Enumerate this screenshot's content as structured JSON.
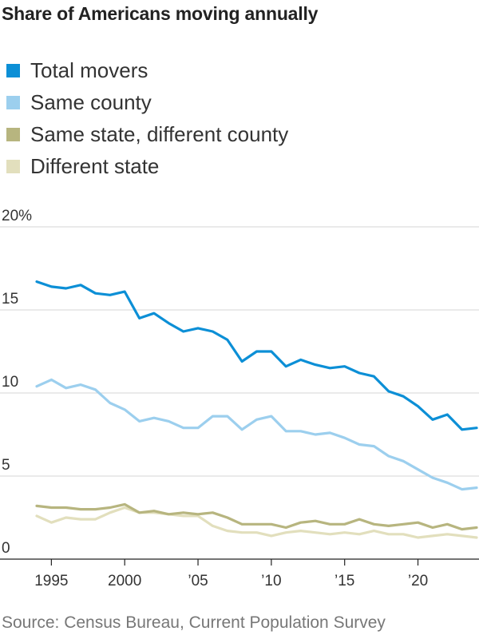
{
  "title": "Share of Americans moving annually",
  "legend": [
    {
      "label": "Total movers",
      "color": "#0c8fd6"
    },
    {
      "label": "Same county",
      "color": "#9ccfee"
    },
    {
      "label": "Same state, different county",
      "color": "#b7b57f"
    },
    {
      "label": "Different state",
      "color": "#e2dfbd"
    }
  ],
  "source": "Source: Census Bureau, Current Population Survey",
  "chart_data": {
    "type": "line",
    "title": "Share of Americans moving annually",
    "xlabel": "",
    "ylabel": "",
    "ylim": [
      0,
      20
    ],
    "xlim": [
      1994,
      2024
    ],
    "y_ticks": [
      {
        "value": 0,
        "label": "0"
      },
      {
        "value": 5,
        "label": "5"
      },
      {
        "value": 10,
        "label": "10"
      },
      {
        "value": 15,
        "label": "15"
      },
      {
        "value": 20,
        "label": "20%"
      }
    ],
    "x_ticks": [
      {
        "value": 1995,
        "label": "1995"
      },
      {
        "value": 2000,
        "label": "2000"
      },
      {
        "value": 2005,
        "label": "’05"
      },
      {
        "value": 2010,
        "label": "’10"
      },
      {
        "value": 2015,
        "label": "’15"
      },
      {
        "value": 2020,
        "label": "’20"
      }
    ],
    "grid": "horizontal",
    "legend_position": "top",
    "x": [
      1994,
      1995,
      1996,
      1997,
      1998,
      1999,
      2000,
      2001,
      2002,
      2003,
      2004,
      2005,
      2006,
      2007,
      2008,
      2009,
      2010,
      2011,
      2012,
      2013,
      2014,
      2015,
      2016,
      2017,
      2018,
      2019,
      2020,
      2021,
      2022,
      2023,
      2024
    ],
    "series": [
      {
        "name": "Total movers",
        "color": "#0c8fd6",
        "values": [
          16.7,
          16.4,
          16.3,
          16.5,
          16.0,
          15.9,
          16.1,
          14.5,
          14.8,
          14.2,
          13.7,
          13.9,
          13.7,
          13.2,
          11.9,
          12.5,
          12.5,
          11.6,
          12.0,
          11.7,
          11.5,
          11.6,
          11.2,
          11.0,
          10.1,
          9.8,
          9.2,
          8.4,
          8.7,
          7.8,
          7.9
        ]
      },
      {
        "name": "Same county",
        "color": "#9ccfee",
        "values": [
          10.4,
          10.8,
          10.3,
          10.5,
          10.2,
          9.4,
          9.0,
          8.3,
          8.5,
          8.3,
          7.9,
          7.9,
          8.6,
          8.6,
          7.8,
          8.4,
          8.6,
          7.7,
          7.7,
          7.5,
          7.6,
          7.3,
          6.9,
          6.8,
          6.2,
          5.9,
          5.4,
          4.9,
          4.6,
          4.2,
          4.3
        ]
      },
      {
        "name": "Same state, different county",
        "color": "#b7b57f",
        "values": [
          3.2,
          3.1,
          3.1,
          3.0,
          3.0,
          3.1,
          3.3,
          2.8,
          2.9,
          2.7,
          2.8,
          2.7,
          2.8,
          2.5,
          2.1,
          2.1,
          2.1,
          1.9,
          2.2,
          2.3,
          2.1,
          2.1,
          2.4,
          2.1,
          2.0,
          2.1,
          2.2,
          1.9,
          2.1,
          1.8,
          1.9
        ]
      },
      {
        "name": "Different state",
        "color": "#e2dfbd",
        "values": [
          2.6,
          2.2,
          2.5,
          2.4,
          2.4,
          2.8,
          3.1,
          2.8,
          2.8,
          2.7,
          2.6,
          2.6,
          2.0,
          1.7,
          1.6,
          1.6,
          1.4,
          1.6,
          1.7,
          1.6,
          1.5,
          1.6,
          1.5,
          1.7,
          1.5,
          1.5,
          1.3,
          1.4,
          1.5,
          1.4,
          1.3
        ]
      }
    ]
  }
}
